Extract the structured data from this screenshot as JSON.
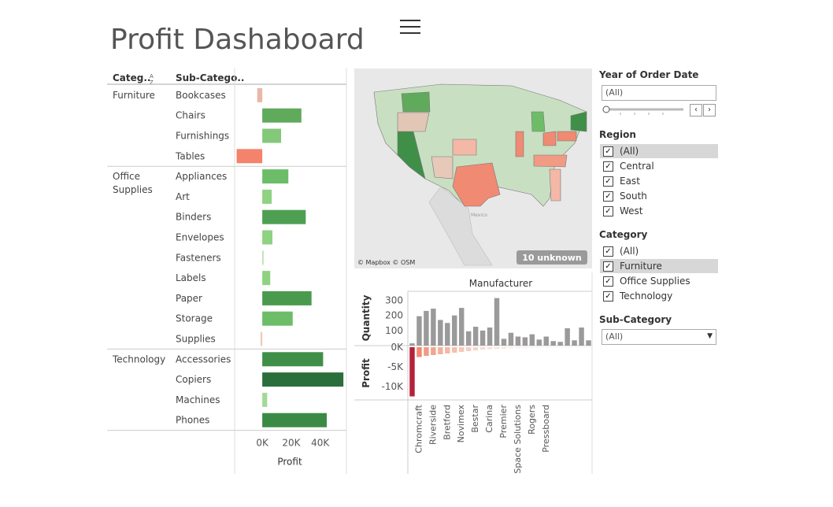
{
  "title": "Profit Dashaboard",
  "bar_table": {
    "header_category": "Categ..",
    "header_subcategory": "Sub-Catego..",
    "sort_icon": "sort-icon",
    "x_axis_label": "Profit",
    "x_ticks": [
      "0K",
      "20K",
      "40K"
    ],
    "categories": [
      "Furniture",
      "Office Supplies",
      "Technology"
    ]
  },
  "chart_data": [
    {
      "type": "bar",
      "orientation": "horizontal",
      "xlabel": "Profit",
      "xlim": [
        -18000,
        57000
      ],
      "groups": [
        {
          "category": "Furniture",
          "items": [
            {
              "sub": "Bookcases",
              "value": -3500,
              "color": "#e8b8a8"
            },
            {
              "sub": "Chairs",
              "value": 27000,
              "color": "#5faa5b"
            },
            {
              "sub": "Furnishings",
              "value": 13000,
              "color": "#84c879"
            },
            {
              "sub": "Tables",
              "value": -17700,
              "color": "#f4836b"
            }
          ]
        },
        {
          "category": "Office Supplies",
          "items": [
            {
              "sub": "Appliances",
              "value": 18000,
              "color": "#6dbd68"
            },
            {
              "sub": "Art",
              "value": 6500,
              "color": "#8fd282"
            },
            {
              "sub": "Binders",
              "value": 30000,
              "color": "#4f9f52"
            },
            {
              "sub": "Envelopes",
              "value": 7000,
              "color": "#8fd282"
            },
            {
              "sub": "Fasteners",
              "value": 900,
              "color": "#b6e0ac"
            },
            {
              "sub": "Labels",
              "value": 5500,
              "color": "#8fd282"
            },
            {
              "sub": "Paper",
              "value": 34000,
              "color": "#4a9a4e"
            },
            {
              "sub": "Storage",
              "value": 21000,
              "color": "#6dbd68"
            },
            {
              "sub": "Supplies",
              "value": -1200,
              "color": "#f0c8bc"
            }
          ]
        },
        {
          "category": "Technology",
          "items": [
            {
              "sub": "Accessories",
              "value": 42000,
              "color": "#3f8f48"
            },
            {
              "sub": "Copiers",
              "value": 56000,
              "color": "#2a6e3b"
            },
            {
              "sub": "Machines",
              "value": 3400,
              "color": "#a5d898"
            },
            {
              "sub": "Phones",
              "value": 44500,
              "color": "#3a8a45"
            }
          ]
        }
      ]
    },
    {
      "type": "bar",
      "title": "Manufacturer",
      "xlabel": "Manufacturer",
      "top_panel": {
        "ylabel": "Quantity",
        "y_ticks": [
          "300",
          "200",
          "100"
        ],
        "ylim": [
          0,
          360
        ],
        "color": "#9a9a9a"
      },
      "bottom_panel": {
        "ylabel": "Profit",
        "y_ticks": [
          "0K",
          "-5K",
          "-10K"
        ],
        "ylim": [
          -13000,
          0
        ]
      },
      "x_tick_labels": [
        "Chromcraft",
        "Riverside",
        "Bretford",
        "Novimex",
        "Bestar",
        "Carina",
        "Premier",
        "Space Solutions",
        "Rogers",
        "Pressboard"
      ],
      "quantity": [
        15,
        195,
        230,
        245,
        170,
        150,
        200,
        250,
        95,
        125,
        100,
        120,
        315,
        45,
        85,
        60,
        55,
        75,
        40,
        60,
        30,
        25,
        115,
        35,
        120,
        35
      ],
      "profit": [
        -12500,
        -2500,
        -2200,
        -2000,
        -1800,
        -1600,
        -1400,
        -1200,
        -1000,
        -800,
        -600,
        -500,
        -450,
        -400,
        -300,
        -250,
        -200,
        -150,
        -100,
        -80,
        -60,
        -40,
        -30,
        -20,
        -10,
        -5
      ],
      "profit_colors": [
        "#b5213a",
        "#f08a72",
        "#f19a84",
        "#f2a590",
        "#f3b09d",
        "#f4b8a7",
        "#f5bfaf",
        "#f6c7b9",
        "#f7cec2",
        "#f8d4ca",
        "#f8d9d0",
        "#f9ddd5",
        "#f9e0d9",
        "#fae3dd",
        "#fae6e1",
        "#fbe9e5",
        "#fbece8",
        "#fcefeb",
        "#fcf0ed",
        "#fdf2ef",
        "#fdf3f1",
        "#fdf4f2",
        "#fef5f3",
        "#fef6f4",
        "#fef7f5",
        "#fef8f6"
      ]
    }
  ],
  "map": {
    "attribution": "© Mapbox © OSM",
    "unknown_badge": "10 unknown",
    "country_label": "Mexico"
  },
  "filters": {
    "year": {
      "label": "Year of Order Date",
      "value": "(All)"
    },
    "region": {
      "label": "Region",
      "items": [
        {
          "label": "(All)",
          "checked": true,
          "selected": true
        },
        {
          "label": "Central",
          "checked": true
        },
        {
          "label": "East",
          "checked": true
        },
        {
          "label": "South",
          "checked": true
        },
        {
          "label": "West",
          "checked": true
        }
      ]
    },
    "category": {
      "label": "Category",
      "items": [
        {
          "label": "(All)",
          "checked": true
        },
        {
          "label": "Furniture",
          "checked": true,
          "selected": true
        },
        {
          "label": "Office Supplies",
          "checked": true
        },
        {
          "label": "Technology",
          "checked": true
        }
      ]
    },
    "subcategory": {
      "label": "Sub-Category",
      "value": "(All)"
    }
  }
}
